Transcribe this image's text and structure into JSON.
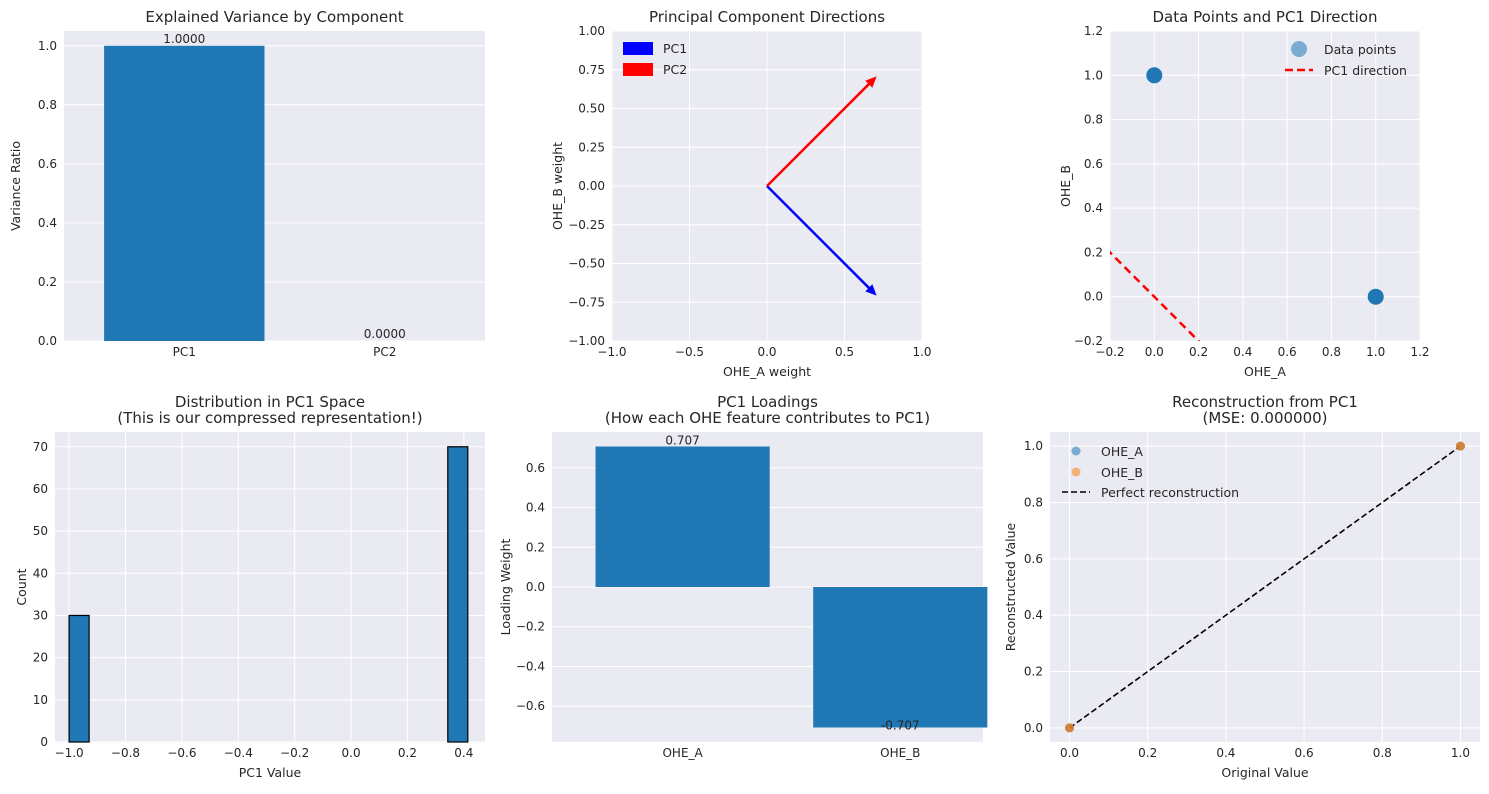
{
  "style": {
    "bar_color": "#1f77b4",
    "bg_color": "#eaeaf2",
    "grid_color": "#ffffff",
    "pc1_color": "#0000ff",
    "pc2_color": "#ff0000",
    "scatter_color": "#1f77b4",
    "ohe_a_color": "#1f77b4",
    "ohe_b_color": "#ff7f0e"
  },
  "chart_data": [
    {
      "id": "variance",
      "type": "bar",
      "title": "Explained Variance by Component",
      "xlabel": "",
      "ylabel": "Variance Ratio",
      "categories": [
        "PC1",
        "PC2"
      ],
      "values": [
        1.0,
        0.0
      ],
      "value_labels": [
        "1.0000",
        "0.0000"
      ],
      "ylim": [
        0,
        1.05
      ],
      "yticks": [
        0.0,
        0.2,
        0.4,
        0.6,
        0.8,
        1.0
      ],
      "ytick_labels": [
        "0.0",
        "0.2",
        "0.4",
        "0.6",
        "0.8",
        "1.0"
      ],
      "grid": true
    },
    {
      "id": "directions",
      "type": "vector",
      "title": "Principal Component Directions",
      "xlabel": "OHE_A weight",
      "ylabel": "OHE_B weight",
      "xlim": [
        -1,
        1
      ],
      "ylim": [
        -1,
        1
      ],
      "xticks": [
        -1.0,
        -0.5,
        0.0,
        0.5,
        1.0
      ],
      "xtick_labels": [
        "−1.0",
        "−0.5",
        "0.0",
        "0.5",
        "1.0"
      ],
      "yticks": [
        -1.0,
        -0.75,
        -0.5,
        -0.25,
        0.0,
        0.25,
        0.5,
        0.75,
        1.0
      ],
      "ytick_labels": [
        "−1.00",
        "−0.75",
        "−0.50",
        "−0.25",
        "0.00",
        "0.25",
        "0.50",
        "0.75",
        "1.00"
      ],
      "series": [
        {
          "name": "PC1",
          "x": 0.7071,
          "y": -0.7071
        },
        {
          "name": "PC2",
          "x": 0.7071,
          "y": 0.7071
        }
      ],
      "legend": "top-left",
      "grid": true
    },
    {
      "id": "points",
      "type": "scatter",
      "title": "Data Points and PC1 Direction",
      "xlabel": "OHE_A",
      "ylabel": "OHE_B",
      "xlim": [
        -0.2,
        1.2
      ],
      "ylim": [
        -0.2,
        1.2
      ],
      "xticks": [
        -0.2,
        0.0,
        0.2,
        0.4,
        0.6,
        0.8,
        1.0,
        1.2
      ],
      "xtick_labels": [
        "−0.2",
        "0.0",
        "0.2",
        "0.4",
        "0.6",
        "0.8",
        "1.0",
        "1.2"
      ],
      "yticks": [
        -0.2,
        0.0,
        0.2,
        0.4,
        0.6,
        0.8,
        1.0,
        1.2
      ],
      "ytick_labels": [
        "−0.2",
        "0.0",
        "0.2",
        "0.4",
        "0.6",
        "0.8",
        "1.0",
        "1.2"
      ],
      "points": [
        [
          0,
          1
        ],
        [
          1,
          0
        ]
      ],
      "line": [
        [
          -0.3,
          0.3
        ],
        [
          0.3,
          -0.3
        ]
      ],
      "legend_entries": [
        "Data points",
        "PC1 direction"
      ],
      "legend": "top-right",
      "grid": true
    },
    {
      "id": "hist",
      "type": "histogram",
      "title": "Distribution in PC1 Space",
      "subtitle": "(This is our compressed representation!)",
      "xlabel": "PC1 Value",
      "ylabel": "Count",
      "xlim": [
        -1.05,
        0.475
      ],
      "ylim": [
        0,
        73.5
      ],
      "xticks": [
        -1.0,
        -0.8,
        -0.6,
        -0.4,
        -0.2,
        0.0,
        0.2,
        0.4
      ],
      "xtick_labels": [
        "−1.0",
        "−0.8",
        "−0.6",
        "−0.4",
        "−0.2",
        "0.0",
        "0.2",
        "0.4"
      ],
      "yticks": [
        0,
        10,
        20,
        30,
        40,
        50,
        60,
        70
      ],
      "ytick_labels": [
        "0",
        "10",
        "20",
        "30",
        "40",
        "50",
        "60",
        "70"
      ],
      "bins": [
        [
          -1.0,
          -0.929,
          30
        ],
        [
          0.343,
          0.414,
          70
        ]
      ],
      "grid": true
    },
    {
      "id": "loadings",
      "type": "bar",
      "title": "PC1 Loadings",
      "subtitle": "(How each OHE feature contributes to PC1)",
      "xlabel": "",
      "ylabel": "Loading Weight",
      "categories": [
        "OHE_A",
        "OHE_B"
      ],
      "values": [
        0.707,
        -0.707
      ],
      "value_labels": [
        "0.707",
        "-0.707"
      ],
      "ylim": [
        -0.78,
        0.78
      ],
      "yticks": [
        -0.6,
        -0.4,
        -0.2,
        0.0,
        0.2,
        0.4,
        0.6
      ],
      "ytick_labels": [
        "−0.6",
        "−0.4",
        "−0.2",
        "0.0",
        "0.2",
        "0.4",
        "0.6"
      ],
      "grid": true
    },
    {
      "id": "recon",
      "type": "scatter",
      "title": "Reconstruction from PC1",
      "subtitle": "(MSE: 0.000000)",
      "xlabel": "Original Value",
      "ylabel": "Reconstructed Value",
      "xlim": [
        -0.05,
        1.05
      ],
      "ylim": [
        -0.05,
        1.05
      ],
      "xticks": [
        0.0,
        0.2,
        0.4,
        0.6,
        0.8,
        1.0
      ],
      "xtick_labels": [
        "0.0",
        "0.2",
        "0.4",
        "0.6",
        "0.8",
        "1.0"
      ],
      "yticks": [
        0.0,
        0.2,
        0.4,
        0.6,
        0.8,
        1.0
      ],
      "ytick_labels": [
        "0.0",
        "0.2",
        "0.4",
        "0.6",
        "0.8",
        "1.0"
      ],
      "series": [
        {
          "name": "OHE_A",
          "points": [
            [
              0,
              0
            ],
            [
              1,
              1
            ]
          ]
        },
        {
          "name": "OHE_B",
          "points": [
            [
              0,
              0
            ],
            [
              1,
              1
            ]
          ]
        }
      ],
      "line": [
        [
          0,
          0
        ],
        [
          1,
          1
        ]
      ],
      "line_name": "Perfect reconstruction",
      "legend": "top-left",
      "grid": true
    }
  ]
}
